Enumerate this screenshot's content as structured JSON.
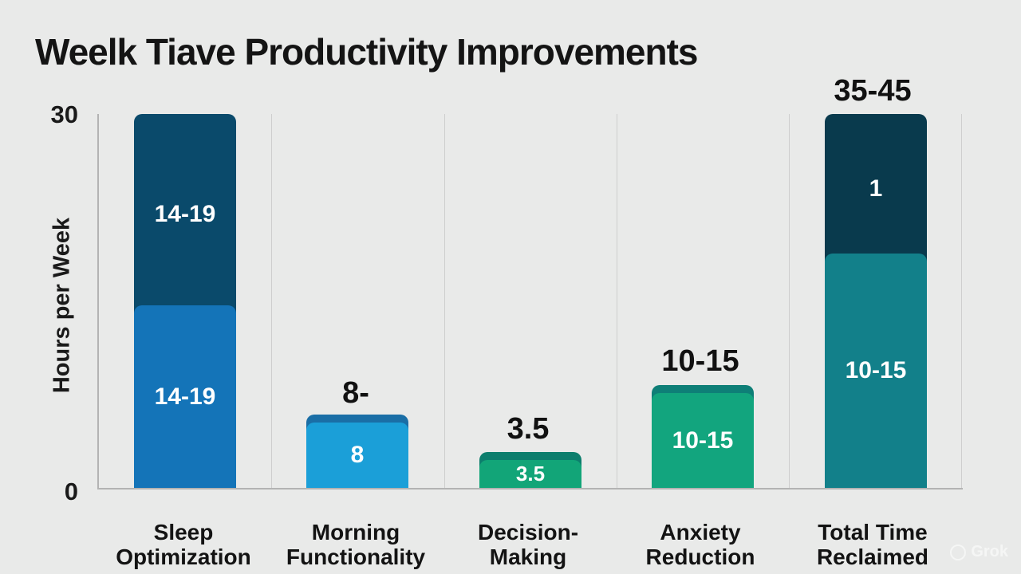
{
  "title": "Weelk Tiave Productivity Improvements",
  "y_axis": {
    "label": "Hours per Week",
    "tick_top": "30",
    "tick_bottom": "0"
  },
  "columns": [
    {
      "id": "sleep-optimization",
      "line1": "Sleep",
      "line2": "Optimization",
      "above": "",
      "seg_top": "14-19",
      "seg_bottom": "14-19"
    },
    {
      "id": "morning-functionality",
      "line1": "Morning",
      "line2": "Functionality",
      "above": "8-",
      "seg": "8"
    },
    {
      "id": "decision-making",
      "line1": "Decision-",
      "line2": "Making",
      "above": "3.5",
      "seg": "3.5"
    },
    {
      "id": "anxiety-reduction",
      "line1": "Anxiety",
      "line2": "Reduction",
      "above": "10-15",
      "seg": "10-15"
    },
    {
      "id": "total-time-reclaimed",
      "line1": "Total Time",
      "line2": "Reclaimed",
      "above": "35-45",
      "seg_top": "1",
      "seg_bottom": "10-15"
    }
  ],
  "watermark": "Grok",
  "colors": {
    "background": "#e9eae9",
    "text": "#151515",
    "axis": "#b3b3b3",
    "gridline": "#cecece",
    "bar1_top": "#0a4a6b",
    "bar1_bottom": "#1474b8",
    "bar2_main": "#1b9fd8",
    "bar2_cap": "#1a6ea6",
    "bar3_main": "#12a578",
    "bar3_cap": "#0d7e6d",
    "bar4_main": "#12a57e",
    "bar4_cap": "#0e7f77",
    "bar5_top": "#093a4d",
    "bar5_bottom": "#12808a",
    "bar_label": "#ffffff"
  },
  "chart_data": {
    "type": "bar",
    "stacked": true,
    "title": "Weelk Tiave Productivity Improvements",
    "xlabel": "",
    "ylabel": "Hours per Week",
    "ylim": [
      0,
      30
    ],
    "y_ticks_shown": [
      0,
      30
    ],
    "grid": "vertical-only",
    "legend": "none",
    "categories": [
      "Sleep Optimization",
      "Morning Functionality",
      "Decision-Making",
      "Anxiety Reduction",
      "Total Time Reclaimed"
    ],
    "series": [
      {
        "name": "bottom-segment",
        "segment_labels": [
          "14-19",
          "8",
          "3.5",
          "10-15",
          "10-15"
        ],
        "est_values_hours": [
          14,
          6,
          3,
          8.3,
          18.2
        ]
      },
      {
        "name": "top-segment",
        "segment_labels": [
          "14-19",
          null,
          null,
          null,
          "1"
        ],
        "est_values_hours": [
          16,
          0,
          0,
          0,
          11.8
        ]
      }
    ],
    "above_bar_labels": [
      "",
      "8-",
      "3.5",
      "10-15",
      "35-45"
    ],
    "bar_total_est_hours": [
      30,
      6,
      3,
      8.3,
      30
    ]
  }
}
